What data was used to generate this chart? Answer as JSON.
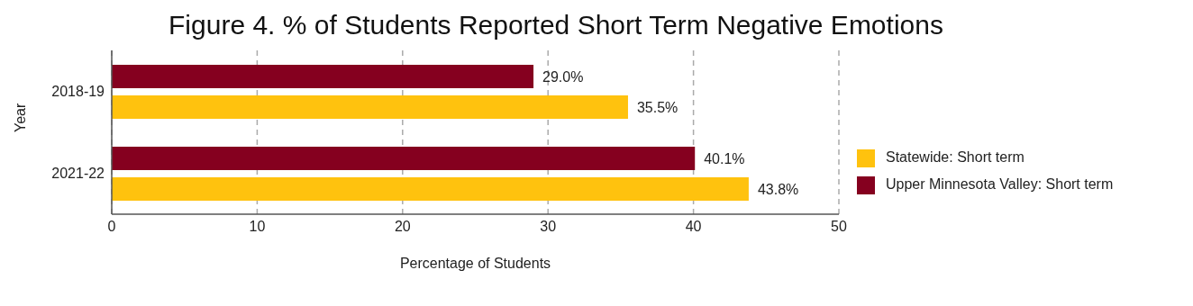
{
  "chart_data": {
    "type": "bar",
    "orientation": "horizontal",
    "title": "Figure 4. % of Students Reported Short Term Negative Emotions",
    "xlabel": "Percentage of Students",
    "ylabel": "Year",
    "categories": [
      "2018-19",
      "2021-22"
    ],
    "series": [
      {
        "name": "Upper Minnesota Valley: Short term",
        "color": "#85001f",
        "values": [
          29.0,
          40.1
        ],
        "value_labels": [
          "29.0%",
          "40.1%"
        ]
      },
      {
        "name": "Statewide: Short term",
        "color": "#ffc20e",
        "values": [
          35.5,
          43.8
        ],
        "value_labels": [
          "35.5%",
          "43.8%"
        ]
      }
    ],
    "xlim": [
      0,
      50
    ],
    "xticks": [
      0,
      10,
      20,
      30,
      40,
      50
    ],
    "grid": "x",
    "legend": "right"
  }
}
